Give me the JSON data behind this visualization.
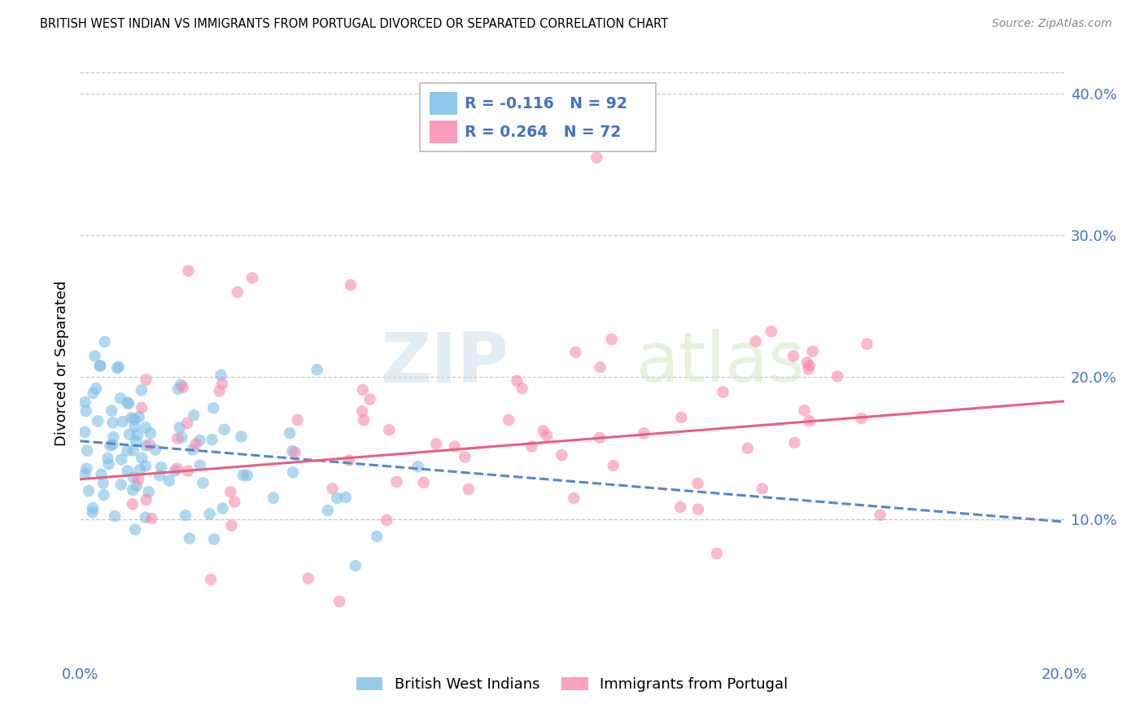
{
  "title": "BRITISH WEST INDIAN VS IMMIGRANTS FROM PORTUGAL DIVORCED OR SEPARATED CORRELATION CHART",
  "source": "Source: ZipAtlas.com",
  "ylabel": "Divorced or Separated",
  "xlabel_blue": "British West Indians",
  "xlabel_pink": "Immigrants from Portugal",
  "legend_blue_r": "R = -0.116",
  "legend_blue_n": "N = 92",
  "legend_pink_r": "R = 0.264",
  "legend_pink_n": "N = 72",
  "xlim": [
    0.0,
    0.2
  ],
  "ylim": [
    0.0,
    0.42
  ],
  "xtick_labels": [
    "0.0%",
    "",
    "",
    "",
    "",
    "20.0%"
  ],
  "ytick_right_labels": [
    "10.0%",
    "20.0%",
    "30.0%",
    "40.0%"
  ],
  "background_color": "#ffffff",
  "grid_color": "#c8c8c8",
  "blue_color": "#7dbfe8",
  "pink_color": "#f98bb0",
  "blue_line_color": "#5588cc",
  "pink_line_color": "#e86080",
  "axis_color": "#4472c4",
  "watermark_zip": "ZIP",
  "watermark_atlas": "atlas",
  "blue_trend_start_y": 0.155,
  "blue_trend_end_y": 0.098,
  "pink_trend_start_y": 0.128,
  "pink_trend_end_y": 0.183
}
